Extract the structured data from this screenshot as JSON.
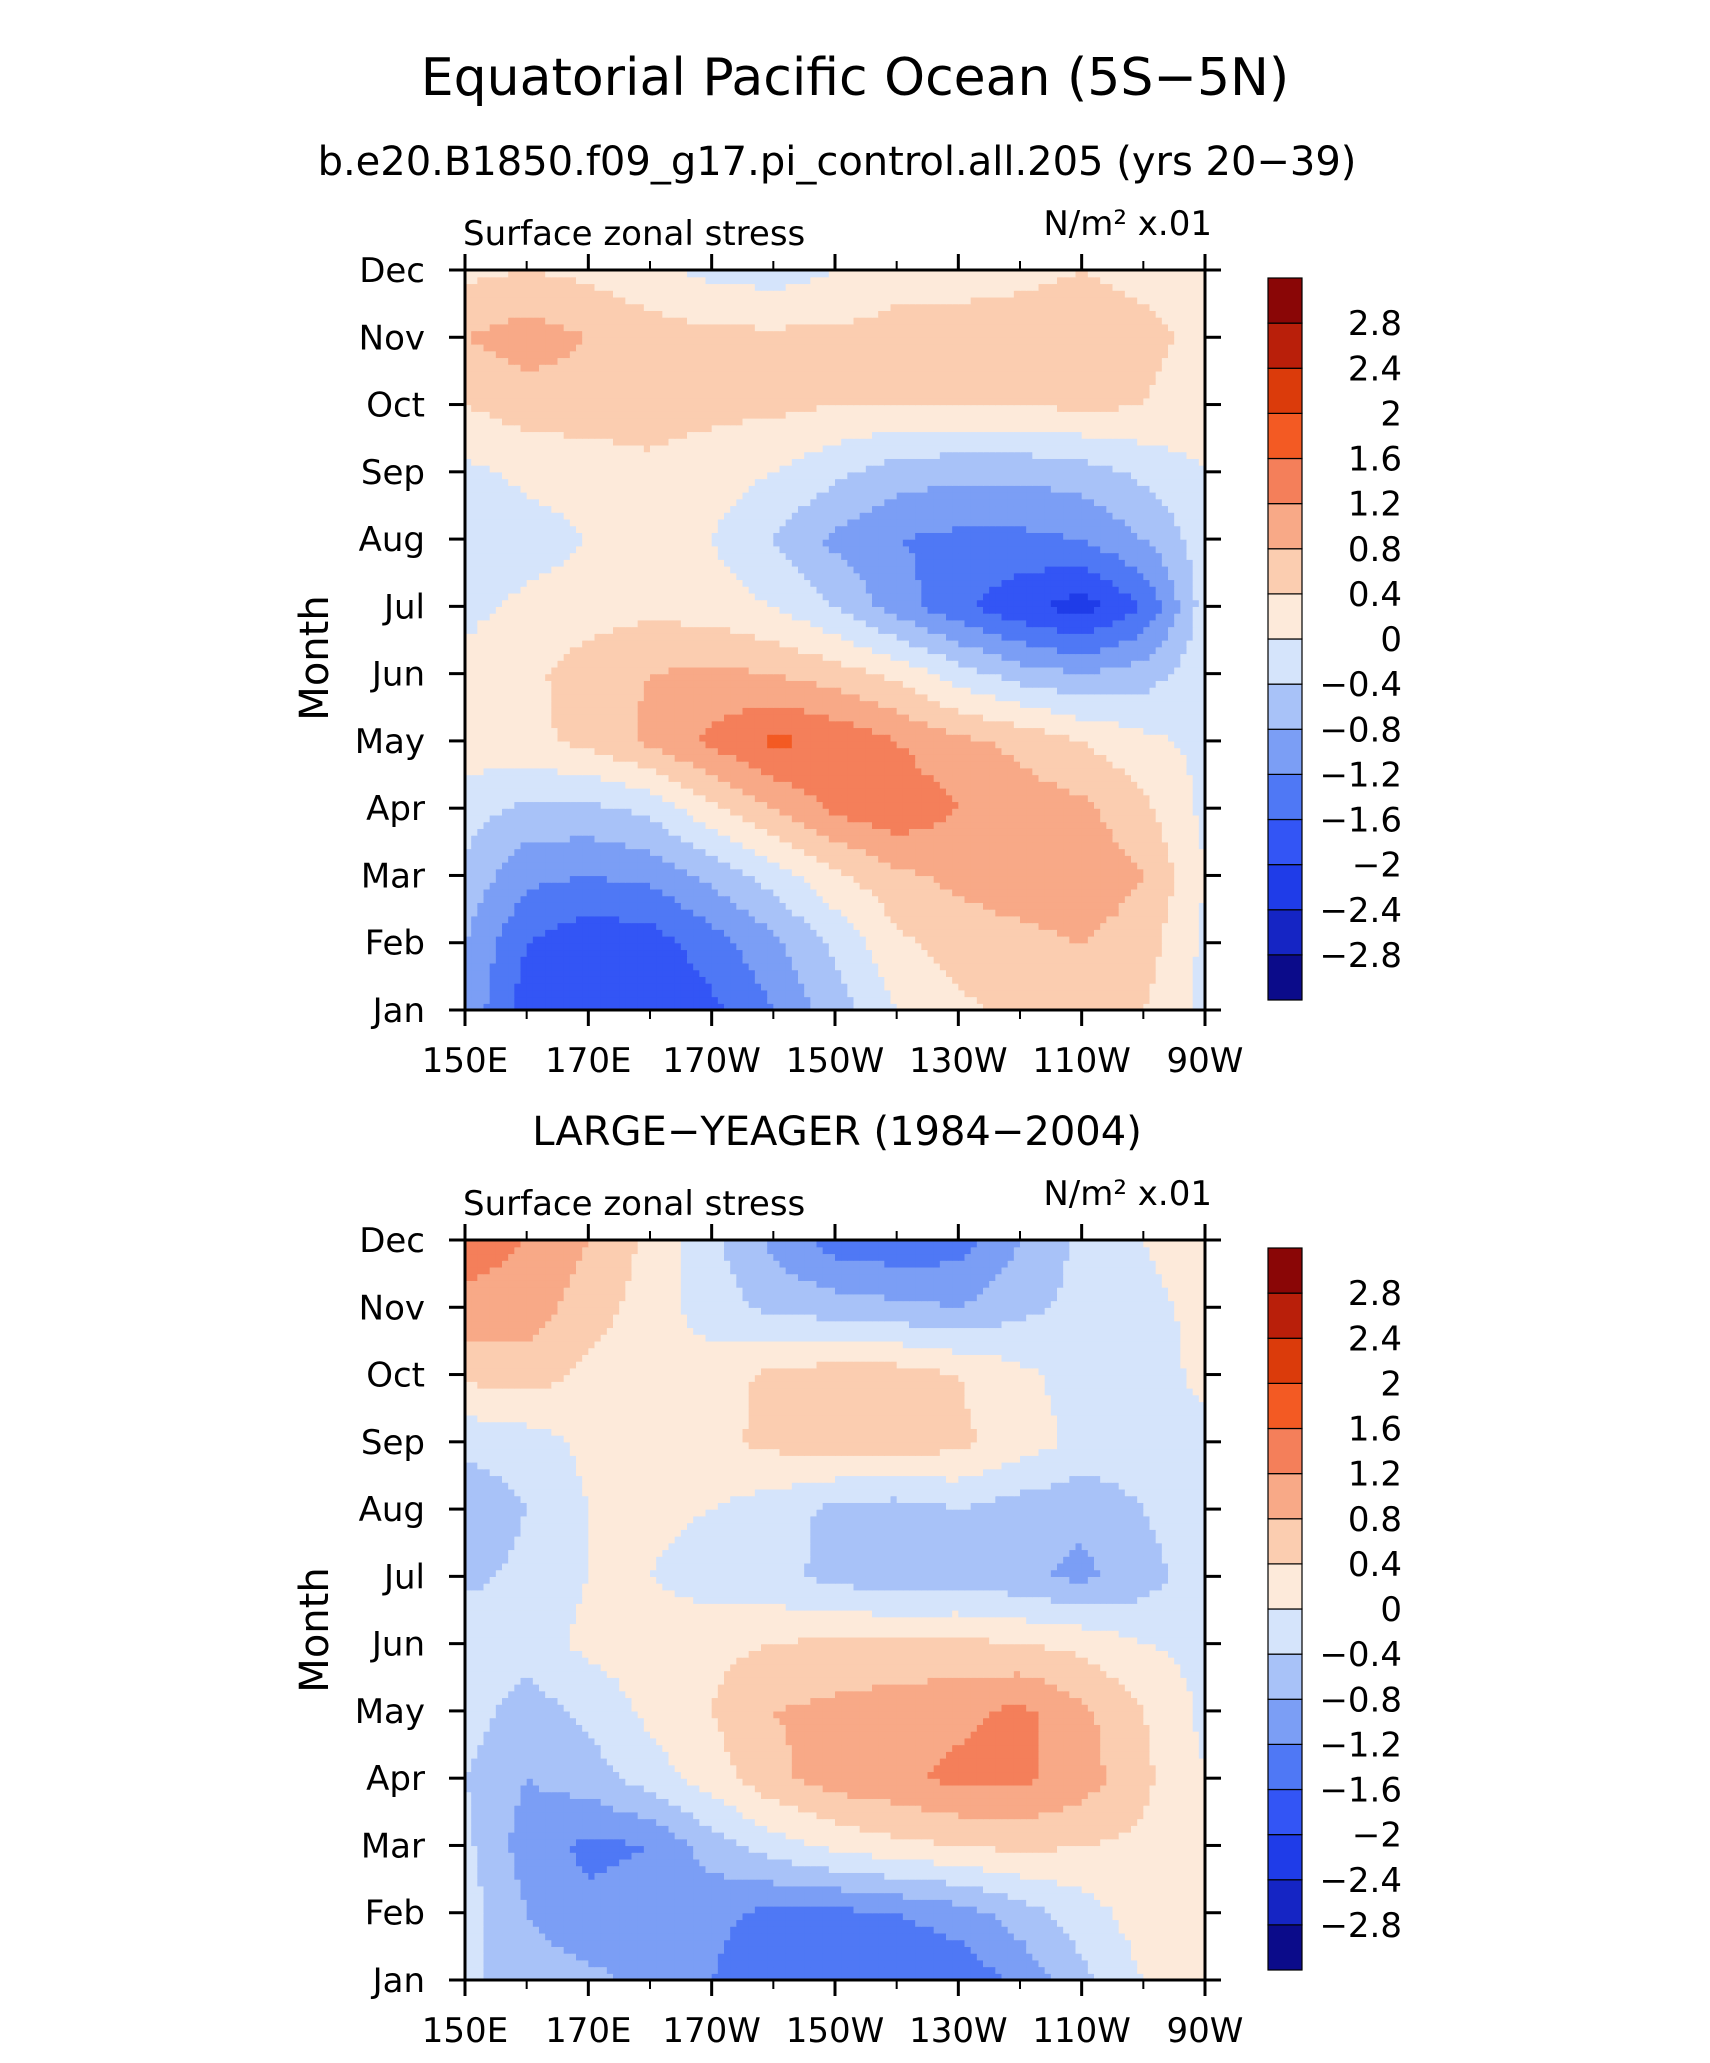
{
  "title": "Equatorial Pacific Ocean (5S−5N)",
  "subtitle": "b.e20.B1850.f09_g17.pi_control.all.205 (yrs 20−39)",
  "colors": {
    "levels": [
      "#0b0b8a",
      "#1525c4",
      "#1f3ce8",
      "#3355f5",
      "#4f78f5",
      "#7b9ef5",
      "#a8c2f8",
      "#d5e4fb",
      "#fdeada",
      "#fbcdb0",
      "#f8a987",
      "#f47f5a",
      "#f35a23",
      "#db3b0b",
      "#b91f0a",
      "#8a0606"
    ],
    "contour_bounds": [
      -3.2,
      -2.8,
      -2.4,
      -2,
      -1.6,
      -1.2,
      -0.8,
      -0.4,
      0,
      0.4,
      0.8,
      1.2,
      1.6,
      2,
      2.4,
      2.8,
      3.2
    ]
  },
  "chart_data": [
    {
      "type": "heatmap",
      "subtitle": "",
      "left_label": "Surface zonal stress",
      "units_label": "N/m² x.01",
      "ylabel": "Month",
      "x_ticks": [
        "150E",
        "170E",
        "170W",
        "150W",
        "130W",
        "110W",
        "90W"
      ],
      "y_ticks": [
        "Jan",
        "Feb",
        "Mar",
        "Apr",
        "May",
        "Jun",
        "Jul",
        "Aug",
        "Sep",
        "Oct",
        "Nov",
        "Dec"
      ],
      "xlim": [
        150,
        270
      ],
      "colorbar_labels": [
        "2.8",
        "2.4",
        "2",
        "1.6",
        "1.2",
        "0.8",
        "0.4",
        "0",
        "−0.4",
        "−0.8",
        "−1.2",
        "−1.6",
        "−2",
        "−2.4",
        "−2.8"
      ],
      "x": [
        150,
        160,
        170,
        180,
        190,
        200,
        210,
        220,
        230,
        240,
        250,
        260,
        270
      ],
      "z": [
        [
          -0.9,
          -1.8,
          -2.0,
          -1.9,
          -1.7,
          -1.2,
          -0.6,
          0.0,
          0.3,
          0.5,
          0.5,
          0.4,
          -0.1
        ],
        [
          -0.8,
          -1.6,
          -1.9,
          -1.8,
          -1.4,
          -0.9,
          -0.3,
          0.3,
          0.6,
          0.7,
          0.8,
          0.6,
          -0.1
        ],
        [
          -0.5,
          -1.1,
          -1.2,
          -1.1,
          -0.7,
          -0.2,
          0.3,
          0.7,
          0.9,
          1.0,
          1.1,
          0.8,
          0.0
        ],
        [
          -0.2,
          -0.5,
          -0.5,
          -0.3,
          0.3,
          0.8,
          1.3,
          1.5,
          1.2,
          1.0,
          0.9,
          0.5,
          -0.1
        ],
        [
          0.2,
          0.3,
          0.5,
          0.9,
          1.3,
          1.7,
          1.5,
          1.2,
          0.9,
          0.7,
          0.4,
          0.1,
          -0.1
        ],
        [
          0.1,
          0.3,
          0.6,
          0.8,
          0.9,
          0.8,
          0.6,
          0.3,
          -0.2,
          -0.6,
          -0.8,
          -0.6,
          -0.1
        ],
        [
          -0.1,
          0.1,
          0.2,
          0.3,
          0.2,
          0.0,
          -0.4,
          -1.0,
          -1.5,
          -1.9,
          -2.2,
          -1.6,
          -0.2
        ],
        [
          -0.3,
          -0.2,
          0.0,
          0.1,
          0.0,
          -0.4,
          -0.9,
          -1.2,
          -1.3,
          -1.3,
          -1.2,
          -0.8,
          -0.2
        ],
        [
          -0.1,
          0.1,
          0.2,
          0.3,
          0.2,
          0.0,
          -0.3,
          -0.6,
          -0.7,
          -0.7,
          -0.6,
          -0.3,
          0.0
        ],
        [
          0.4,
          0.6,
          0.6,
          0.6,
          0.5,
          0.5,
          0.4,
          0.4,
          0.4,
          0.4,
          0.5,
          0.4,
          0.2
        ],
        [
          0.8,
          1.0,
          0.8,
          0.6,
          0.5,
          0.5,
          0.5,
          0.5,
          0.5,
          0.6,
          0.6,
          0.5,
          0.3
        ],
        [
          0.3,
          0.4,
          0.3,
          0.1,
          -0.1,
          -0.2,
          0.0,
          0.3,
          0.3,
          0.3,
          0.4,
          0.3,
          0.2
        ]
      ]
    },
    {
      "type": "heatmap",
      "subtitle": "LARGE−YEAGER (1984−2004)",
      "left_label": "Surface zonal stress",
      "units_label": "N/m² x.01",
      "ylabel": "Month",
      "x_ticks": [
        "150E",
        "170E",
        "170W",
        "150W",
        "130W",
        "110W",
        "90W"
      ],
      "y_ticks": [
        "Jan",
        "Feb",
        "Mar",
        "Apr",
        "May",
        "Jun",
        "Jul",
        "Aug",
        "Sep",
        "Oct",
        "Nov",
        "Dec"
      ],
      "xlim": [
        150,
        270
      ],
      "colorbar_labels": [
        "2.8",
        "2.4",
        "2",
        "1.6",
        "1.2",
        "0.8",
        "0.4",
        "0",
        "−0.4",
        "−0.8",
        "−1.2",
        "−1.6",
        "−2",
        "−2.4",
        "−2.8"
      ],
      "x": [
        150,
        160,
        170,
        180,
        190,
        200,
        210,
        220,
        230,
        240,
        250,
        260,
        270
      ],
      "z": [
        [
          -0.3,
          -0.6,
          -0.7,
          -0.9,
          -1.2,
          -1.5,
          -1.6,
          -1.6,
          -1.5,
          -1.1,
          -0.5,
          0.0,
          0.1
        ],
        [
          -0.2,
          -0.8,
          -1.1,
          -1.0,
          -1.1,
          -1.3,
          -1.3,
          -1.2,
          -1.0,
          -0.6,
          -0.2,
          0.2,
          0.1
        ],
        [
          -0.3,
          -1.0,
          -1.3,
          -1.2,
          -0.6,
          -0.2,
          0.1,
          0.3,
          0.4,
          0.5,
          0.4,
          0.3,
          0.0
        ],
        [
          -0.4,
          -0.8,
          -0.6,
          -0.2,
          0.2,
          0.7,
          1.0,
          1.1,
          1.3,
          1.3,
          1.0,
          0.5,
          0.0
        ],
        [
          -0.2,
          -0.6,
          -0.3,
          0.1,
          0.4,
          0.8,
          0.9,
          1.0,
          1.1,
          1.3,
          0.9,
          0.4,
          -0.1
        ],
        [
          -0.1,
          -0.2,
          0.1,
          0.2,
          0.3,
          0.4,
          0.5,
          0.5,
          0.5,
          0.4,
          0.3,
          0.0,
          -0.1
        ],
        [
          -0.5,
          -0.3,
          0.0,
          0.0,
          -0.2,
          -0.3,
          -0.5,
          -0.7,
          -0.6,
          -0.7,
          -0.9,
          -0.6,
          -0.1
        ],
        [
          -0.7,
          -0.4,
          0.0,
          0.1,
          0.0,
          -0.2,
          -0.5,
          -0.6,
          -0.4,
          -0.6,
          -0.7,
          -0.4,
          -0.1
        ],
        [
          -0.3,
          -0.2,
          0.1,
          0.3,
          0.3,
          0.5,
          0.6,
          0.7,
          0.5,
          0.2,
          -0.1,
          -0.2,
          -0.1
        ],
        [
          0.5,
          0.6,
          0.3,
          0.1,
          0.2,
          0.5,
          0.6,
          0.6,
          0.4,
          0.1,
          -0.2,
          -0.2,
          0.1
        ],
        [
          1.1,
          1.0,
          0.6,
          0.2,
          -0.2,
          -0.5,
          -0.6,
          -0.7,
          -0.8,
          -0.5,
          -0.3,
          -0.1,
          0.1
        ],
        [
          1.4,
          1.2,
          0.8,
          0.3,
          -0.3,
          -0.9,
          -1.4,
          -1.5,
          -1.4,
          -0.8,
          -0.3,
          0.0,
          0.2
        ]
      ]
    }
  ]
}
